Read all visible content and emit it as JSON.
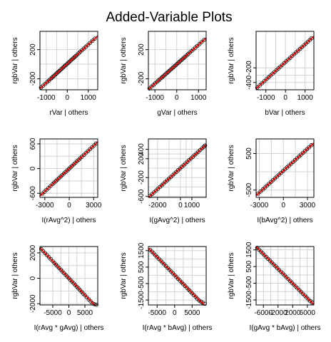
{
  "title": "Added-Variable Plots",
  "colors": {
    "point_stroke": "#000000",
    "fit_line": "#e00000",
    "smooth_line": "#e00000",
    "grid": "#d3d3d3",
    "frame": "#000000"
  },
  "chart_data": [
    {
      "type": "scatter",
      "xlabel": "rVar | others",
      "ylabel": "rgbVar | others",
      "xlim": [
        -1300,
        1450
      ],
      "ylim": [
        -350,
        450
      ],
      "xticks": [
        -1000,
        0,
        1000
      ],
      "yticks": [
        -200,
        200
      ],
      "x": [
        -1250,
        -1150,
        -1050,
        -950,
        -880,
        -800,
        -740,
        -680,
        -620,
        -560,
        -500,
        -440,
        -380,
        -320,
        -260,
        -200,
        -140,
        -80,
        -20,
        40,
        100,
        160,
        220,
        280,
        340,
        400,
        470,
        540,
        620,
        700,
        790,
        880,
        980,
        1080,
        1200,
        1310
      ],
      "y": [
        -320,
        -294,
        -268,
        -242,
        -224,
        -203,
        -187,
        -171,
        -156,
        -140,
        -124,
        -108,
        -93,
        -77,
        -61,
        -45,
        -30,
        -14,
        2,
        17,
        33,
        49,
        65,
        80,
        96,
        112,
        130,
        149,
        170,
        191,
        215,
        238,
        264,
        291,
        322,
        351
      ],
      "grid": true
    },
    {
      "type": "scatter",
      "xlabel": "gVar | others",
      "ylabel": "rgbVar | others",
      "xlim": [
        -1300,
        1350
      ],
      "ylim": [
        -350,
        450
      ],
      "xticks": [
        -1000,
        0,
        1000
      ],
      "yticks": [
        -200,
        200
      ],
      "x": [
        -1250,
        -1160,
        -1070,
        -990,
        -910,
        -840,
        -770,
        -700,
        -640,
        -580,
        -520,
        -460,
        -400,
        -340,
        -280,
        -220,
        -160,
        -100,
        -40,
        20,
        80,
        140,
        200,
        260,
        320,
        380,
        450,
        520,
        600,
        680,
        760,
        850,
        940,
        1040,
        1140,
        1260
      ],
      "y": [
        -332,
        -308,
        -284,
        -263,
        -242,
        -223,
        -205,
        -186,
        -170,
        -155,
        -139,
        -123,
        -107,
        -91,
        -75,
        -59,
        -43,
        -27,
        -11,
        5,
        21,
        37,
        53,
        69,
        85,
        101,
        120,
        138,
        160,
        181,
        202,
        226,
        250,
        276,
        303,
        335
      ],
      "grid": true
    },
    {
      "type": "scatter",
      "xlabel": "bVar | others",
      "ylabel": "rgbVar | others",
      "xlim": [
        -1500,
        1450
      ],
      "ylim": [
        -500,
        300
      ],
      "xticks": [
        -1000,
        0,
        1000
      ],
      "yticks": [
        -400,
        -200
      ],
      "x": [
        -1440,
        -1320,
        -1200,
        -1080,
        -960,
        -860,
        -760,
        -660,
        -560,
        -460,
        -360,
        -260,
        -160,
        -60,
        40,
        140,
        240,
        340,
        440,
        540,
        640,
        740,
        840,
        940,
        1040,
        1140,
        1240,
        1340
      ],
      "y": [
        -470,
        -441,
        -411,
        -382,
        -353,
        -329,
        -304,
        -280,
        -256,
        -232,
        -207,
        -183,
        -159,
        -134,
        -110,
        -86,
        -62,
        -37,
        -13,
        11,
        35,
        60,
        84,
        108,
        133,
        157,
        181,
        206
      ],
      "grid": true
    },
    {
      "type": "scatter",
      "xlabel": "I(rAvg^2) | others",
      "ylabel": "rgbVar | others",
      "xlim": [
        -3600,
        3500
      ],
      "ylim": [
        -700,
        720
      ],
      "xticks": [
        -3000,
        0,
        3000
      ],
      "yticks": [
        -600,
        0,
        600
      ],
      "x": [
        -3300,
        -3050,
        -2800,
        -2550,
        -2300,
        -2050,
        -1850,
        -1650,
        -1450,
        -1250,
        -1050,
        -850,
        -650,
        -450,
        -250,
        -50,
        150,
        350,
        550,
        750,
        950,
        1150,
        1350,
        1550,
        1800,
        2050,
        2300,
        2550,
        2800,
        3050,
        3300
      ],
      "y": [
        -610,
        -564,
        -518,
        -472,
        -425,
        -379,
        -342,
        -305,
        -268,
        -231,
        -194,
        -157,
        -120,
        -83,
        -46,
        -9,
        28,
        65,
        102,
        139,
        176,
        213,
        250,
        287,
        333,
        379,
        425,
        472,
        518,
        564,
        610
      ],
      "grid": true
    },
    {
      "type": "scatter",
      "xlabel": "I(gAvg^2) | others",
      "ylabel": "rgbVar | others",
      "xlim": [
        -2800,
        2250
      ],
      "ylim": [
        -620,
        620
      ],
      "xticks": [
        -2000,
        0,
        1000
      ],
      "yticks": [
        -600,
        -200,
        200,
        400
      ],
      "x": [
        -2650,
        -2480,
        -2310,
        -2140,
        -1970,
        -1800,
        -1640,
        -1480,
        -1320,
        -1160,
        -1000,
        -840,
        -680,
        -520,
        -360,
        -200,
        -40,
        120,
        280,
        440,
        600,
        760,
        920,
        1080,
        1240,
        1400,
        1560,
        1720,
        1880,
        2040,
        2150
      ],
      "y": [
        -590,
        -552,
        -514,
        -477,
        -439,
        -401,
        -366,
        -330,
        -294,
        -259,
        -223,
        -188,
        -152,
        -116,
        -81,
        -45,
        -9,
        27,
        62,
        98,
        134,
        169,
        205,
        240,
        276,
        312,
        347,
        383,
        419,
        454,
        479
      ],
      "grid": true
    },
    {
      "type": "scatter",
      "xlabel": "I(bAvg^2) | others",
      "ylabel": "rgbVar | others",
      "xlim": [
        -3400,
        3800
      ],
      "ylim": [
        -700,
        900
      ],
      "xticks": [
        -3000,
        0,
        3000
      ],
      "yticks": [
        -500,
        500
      ],
      "x": [
        -3150,
        -2850,
        -2550,
        -2300,
        -2050,
        -1800,
        -1550,
        -1300,
        -1050,
        -800,
        -550,
        -300,
        -50,
        200,
        450,
        700,
        950,
        1200,
        1450,
        1700,
        1950,
        2200,
        2450,
        2700,
        2950,
        3200,
        3500
      ],
      "y": [
        -600,
        -540,
        -480,
        -430,
        -380,
        -330,
        -280,
        -230,
        -180,
        -130,
        -80,
        -30,
        20,
        70,
        120,
        170,
        220,
        270,
        320,
        370,
        420,
        470,
        520,
        570,
        620,
        670,
        730
      ],
      "grid": true
    },
    {
      "type": "scatter",
      "xlabel": "I(rAvg * gAvg) | others",
      "ylabel": "rgbVar | others",
      "xlim": [
        -9000,
        9000
      ],
      "ylim": [
        -2100,
        2500
      ],
      "xticks": [
        -5000,
        0,
        5000
      ],
      "yticks": [
        -2000,
        0,
        2000
      ],
      "x": [
        -8600,
        -8000,
        -7400,
        -6800,
        -6200,
        -5600,
        -5000,
        -4500,
        -4000,
        -3500,
        -3000,
        -2500,
        -2000,
        -1500,
        -1000,
        -500,
        0,
        500,
        1000,
        1500,
        2000,
        2500,
        3000,
        3500,
        4000,
        4500,
        5000,
        5600,
        6200,
        6800,
        7400,
        8000,
        8600
      ],
      "y": [
        2300,
        2140,
        1980,
        1820,
        1660,
        1500,
        1340,
        1205,
        1070,
        935,
        800,
        670,
        535,
        400,
        265,
        135,
        0,
        -135,
        -265,
        -400,
        -535,
        -670,
        -800,
        -935,
        -1070,
        -1205,
        -1340,
        -1500,
        -1660,
        -1820,
        -1980,
        -2040,
        -2080
      ],
      "grid": true
    },
    {
      "type": "scatter",
      "xlabel": "I(rAvg * bAvg) | others",
      "ylabel": "rgbVar | others",
      "xlim": [
        -7500,
        9000
      ],
      "ylim": [
        -1800,
        1750
      ],
      "xticks": [
        -5000,
        0,
        5000
      ],
      "yticks": [
        -1500,
        -500,
        500,
        1500
      ],
      "x": [
        -7000,
        -6500,
        -6000,
        -5500,
        -5000,
        -4500,
        -4000,
        -3500,
        -3000,
        -2500,
        -2000,
        -1500,
        -1000,
        -500,
        0,
        500,
        1000,
        1500,
        2000,
        2500,
        3000,
        3500,
        4000,
        4500,
        5000,
        5500,
        6000,
        6500,
        7000,
        7500,
        8000,
        8600
      ],
      "y": [
        1550,
        1440,
        1330,
        1220,
        1110,
        1000,
        890,
        780,
        670,
        560,
        450,
        340,
        230,
        120,
        10,
        -100,
        -210,
        -320,
        -430,
        -540,
        -650,
        -760,
        -870,
        -980,
        -1090,
        -1200,
        -1310,
        -1420,
        -1530,
        -1600,
        -1660,
        -1730
      ],
      "grid": true
    },
    {
      "type": "scatter",
      "xlabel": "I(gAvg * bAvg) | others",
      "ylabel": "rgbVar | others",
      "xlim": [
        -8000,
        7800
      ],
      "ylim": [
        -1800,
        1700
      ],
      "xticks": [
        -6000,
        -2000,
        2000,
        6000
      ],
      "yticks": [
        -1500,
        -500,
        500,
        1500
      ],
      "x": [
        -7700,
        -7200,
        -6700,
        -6200,
        -5700,
        -5200,
        -4700,
        -4200,
        -3700,
        -3200,
        -2700,
        -2200,
        -1700,
        -1200,
        -700,
        -200,
        300,
        800,
        1300,
        1800,
        2300,
        2800,
        3300,
        3800,
        4300,
        4800,
        5300,
        5800,
        6300,
        6800,
        7300
      ],
      "y": [
        1620,
        1510,
        1400,
        1290,
        1180,
        1070,
        960,
        850,
        740,
        630,
        520,
        410,
        300,
        190,
        80,
        -30,
        -140,
        -250,
        -360,
        -470,
        -580,
        -690,
        -800,
        -910,
        -1020,
        -1130,
        -1240,
        -1350,
        -1460,
        -1570,
        -1650
      ],
      "grid": true
    }
  ]
}
